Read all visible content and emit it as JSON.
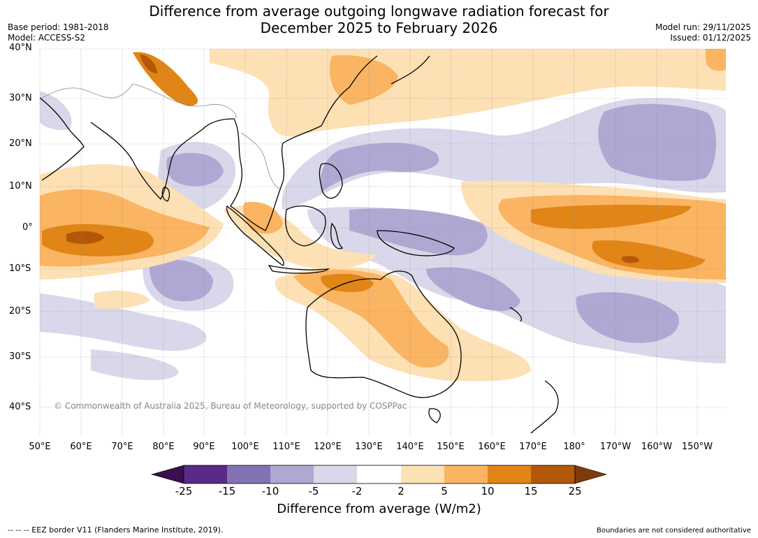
{
  "title": {
    "line1": "Difference from average outgoing longwave radiation forecast for",
    "line2": "December 2025 to February 2026"
  },
  "meta": {
    "base_period": "Base period: 1981-2018",
    "model": "Model: ACCESS-S2",
    "model_run": "Model run: 29/11/2025",
    "issued": "Issued: 01/12/2025"
  },
  "copyright": "© Commonwealth of Australia 2025, Bureau of Meteorology, supported by COSPPac",
  "lat_labels": [
    "40°N",
    "30°N",
    "20°N",
    "10°N",
    "0°",
    "10°S",
    "20°S",
    "30°S",
    "40°S"
  ],
  "lon_labels": [
    "50°E",
    "60°E",
    "70°E",
    "80°E",
    "90°E",
    "100°E",
    "110°E",
    "120°E",
    "130°E",
    "140°E",
    "150°E",
    "160°E",
    "170°E",
    "180°",
    "170°W",
    "160°W",
    "150°W"
  ],
  "colorbar": {
    "title": "Difference from average (W/m2)",
    "ticks": [
      "-25",
      "-15",
      "-10",
      "-5",
      "-2",
      "2",
      "5",
      "10",
      "15",
      "25"
    ],
    "colors": [
      "#3b0f4f",
      "#5a2a87",
      "#8473b3",
      "#b0a8d3",
      "#d8d8ea",
      "#ffffff",
      "#fde0b4",
      "#fab462",
      "#e08516",
      "#b35808",
      "#7e3c0b"
    ]
  },
  "footer": {
    "eez": "--  --  -- EEZ border V11 (Flanders Marine Institute, 2019).",
    "boundaries": "Boundaries are not considered authoritative"
  },
  "legend": {
    "lavender": "#d8d8ea",
    "lilac": "#b0a8d3",
    "peach": "#fde0b4",
    "orange": "#fab462",
    "dark_orange": "#e08516",
    "brown": "#b35808"
  }
}
